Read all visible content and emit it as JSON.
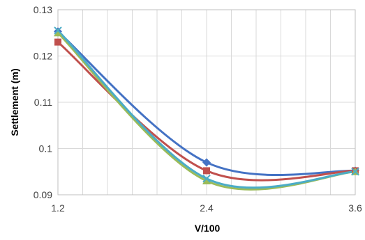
{
  "chart_data": {
    "type": "line",
    "title": "",
    "xlabel": "V/100",
    "ylabel": "Settlement (m)",
    "x": [
      1.2,
      2.4,
      3.6
    ],
    "xlim": [
      1.2,
      3.6
    ],
    "ylim": [
      0.09,
      0.13
    ],
    "x_ticks": [
      "1.2",
      "2.4",
      "3.6"
    ],
    "y_ticks": [
      "0.09",
      "0.1",
      "0.11",
      "0.12",
      "0.13"
    ],
    "grid": true,
    "legend": "none",
    "series": [
      {
        "values": [
          0.1253,
          0.097,
          0.0952
        ],
        "color": "#4472C4",
        "marker": "diamond"
      },
      {
        "values": [
          0.123,
          0.0952,
          0.0952
        ],
        "color": "#C0504D",
        "marker": "square"
      },
      {
        "values": [
          0.125,
          0.093,
          0.095
        ],
        "color": "#9BBB59",
        "marker": "triangle"
      },
      {
        "values": [
          0.1255,
          0.0935,
          0.095
        ],
        "color": "#4BACC6",
        "marker": "x"
      }
    ]
  }
}
